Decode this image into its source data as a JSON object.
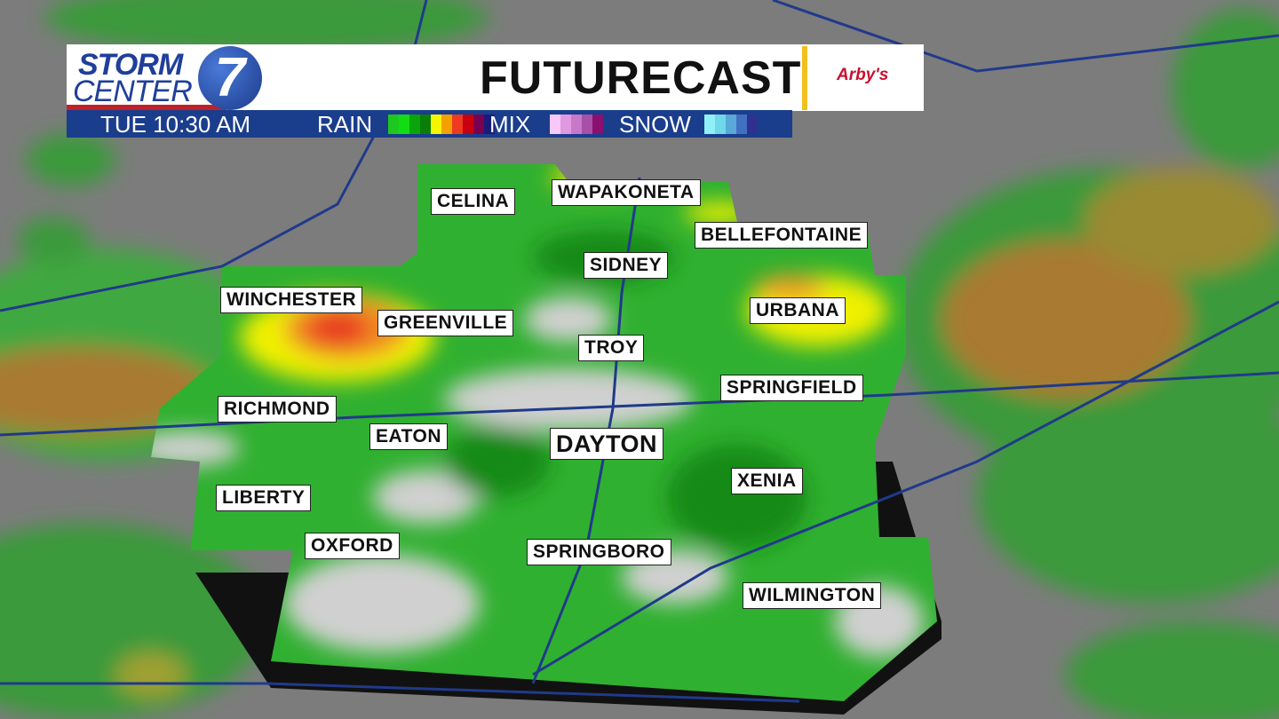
{
  "header": {
    "brand_line1": "STORM",
    "brand_line2": "CENTER",
    "brand_number": "7",
    "title": "FUTURECAST",
    "sponsor": "Arby's"
  },
  "legend_bar": {
    "time": "TUE  10:30 AM",
    "rain_label": "RAIN",
    "mix_label": "MIX",
    "snow_label": "SNOW",
    "rain_colors": [
      "#1ec81e",
      "#12dd12",
      "#0aa50a",
      "#0a7d0a",
      "#f5f500",
      "#f5a000",
      "#ee3a20",
      "#c80010",
      "#7a0050",
      "#1a1a7a"
    ],
    "mix_colors": [
      "#f8c8f8",
      "#e098e0",
      "#c878c8",
      "#a850a8",
      "#8a1070"
    ],
    "snow_colors": [
      "#90f0f8",
      "#70d8e8",
      "#58a8d8",
      "#4070c0",
      "#303090"
    ]
  },
  "cities": [
    "CELINA",
    "WAPAKONETA",
    "BELLEFONTAINE",
    "SIDNEY",
    "WINCHESTER",
    "GREENVILLE",
    "URBANA",
    "TROY",
    "SPRINGFIELD",
    "RICHMOND",
    "EATON",
    "DAYTON",
    "XENIA",
    "LIBERTY",
    "OXFORD",
    "SPRINGBORO",
    "WILMINGTON"
  ]
}
